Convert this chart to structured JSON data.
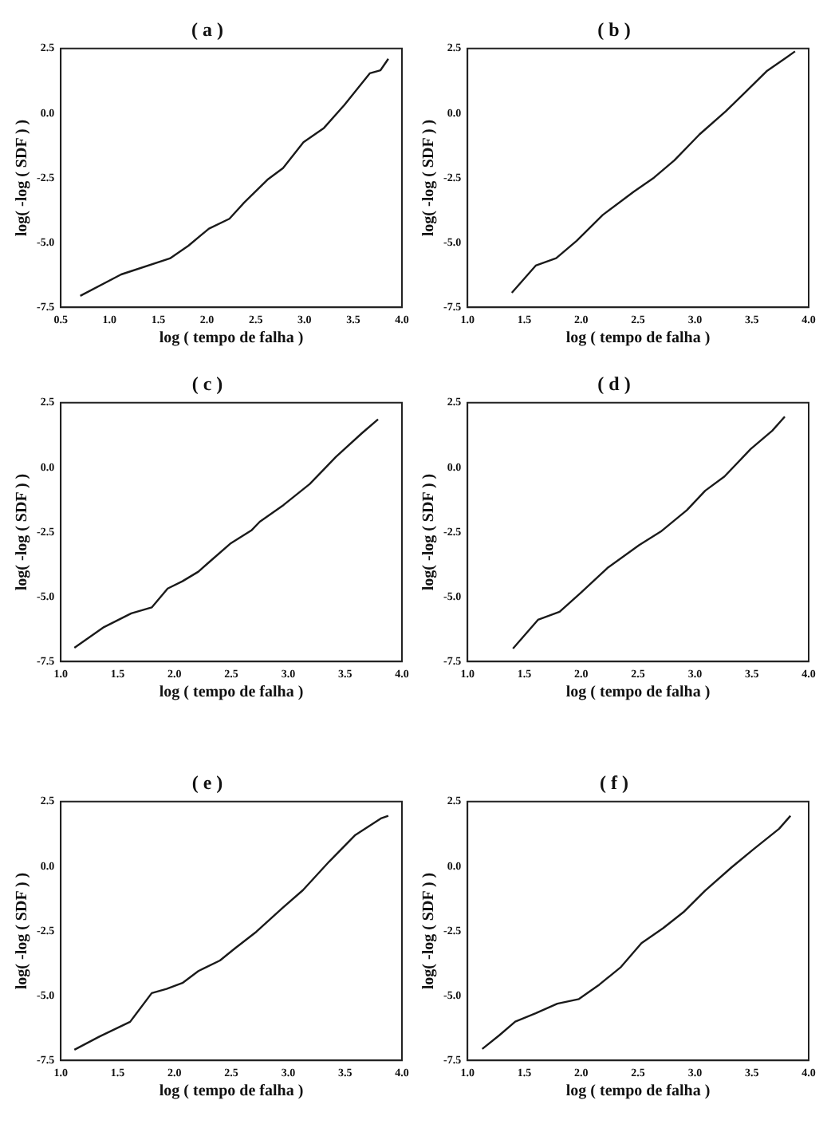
{
  "chart_data": [
    {
      "type": "line",
      "title": "( a )",
      "xlabel": "log ( tempo de falha )",
      "ylabel": "log( -log ( SDF ) )",
      "xlim": [
        0.5,
        4.0
      ],
      "ylim": [
        -7.5,
        2.5
      ],
      "xticks": [
        {
          "value": 0.5,
          "label": "0.5"
        },
        {
          "value": 1,
          "label": "1.0"
        },
        {
          "value": 1.5,
          "label": "1.5"
        },
        {
          "value": 2,
          "label": "2.0"
        },
        {
          "value": 2.5,
          "label": "2.5"
        },
        {
          "value": 3,
          "label": "3.0"
        },
        {
          "value": 3.5,
          "label": "3.5"
        },
        {
          "value": 4,
          "label": "4.0"
        }
      ],
      "yticks": [
        {
          "value": -7.5,
          "label": "-7.5"
        },
        {
          "value": -5,
          "label": "-5.0"
        },
        {
          "value": -2.5,
          "label": "-2.5"
        },
        {
          "value": 0,
          "label": "0.0"
        },
        {
          "value": 2.5,
          "label": "2.5"
        }
      ],
      "grid": false,
      "legend": false,
      "marker": "none",
      "line_style": "solid",
      "series": [
        {
          "color": "#1a1a1a",
          "x": [
            0.7,
            1.12,
            1.62,
            1.81,
            2.02,
            2.23,
            2.38,
            2.62,
            2.78,
            2.99,
            3.2,
            3.41,
            3.67,
            3.78,
            3.86
          ],
          "values": [
            -7.06,
            -6.23,
            -5.61,
            -5.12,
            -4.46,
            -4.08,
            -3.46,
            -2.57,
            -2.12,
            -1.12,
            -0.57,
            0.32,
            1.54,
            1.66,
            2.1
          ]
        }
      ]
    },
    {
      "type": "line",
      "title": "( b )",
      "xlabel": "log ( tempo de falha )",
      "ylabel": "log( -log ( SDF ) )",
      "xlim": [
        1.0,
        4.0
      ],
      "ylim": [
        -7.5,
        2.5
      ],
      "xticks": [
        {
          "value": 1,
          "label": "1.0"
        },
        {
          "value": 1.5,
          "label": "1.5"
        },
        {
          "value": 2,
          "label": "2.0"
        },
        {
          "value": 2.5,
          "label": "2.5"
        },
        {
          "value": 3,
          "label": "3.0"
        },
        {
          "value": 3.5,
          "label": "3.5"
        },
        {
          "value": 4,
          "label": "4.0"
        }
      ],
      "yticks": [
        {
          "value": -7.5,
          "label": "-7.5"
        },
        {
          "value": -5,
          "label": "-5.0"
        },
        {
          "value": -2.5,
          "label": "-2.5"
        },
        {
          "value": 0,
          "label": "0.0"
        },
        {
          "value": 2.5,
          "label": "2.5"
        }
      ],
      "grid": false,
      "legend": false,
      "marker": "none",
      "line_style": "solid",
      "series": [
        {
          "color": "#1a1a1a",
          "x": [
            1.39,
            1.6,
            1.78,
            1.96,
            2.19,
            2.46,
            2.64,
            2.82,
            3.04,
            3.27,
            3.45,
            3.63,
            3.81,
            3.88
          ],
          "values": [
            -6.94,
            -5.89,
            -5.6,
            -4.93,
            -3.93,
            -3.04,
            -2.49,
            -1.82,
            -0.82,
            0.07,
            0.84,
            1.62,
            2.17,
            2.39
          ]
        }
      ]
    },
    {
      "type": "line",
      "title": "( c )",
      "xlabel": "log ( tempo de falha )",
      "ylabel": "log( -log ( SDF ) )",
      "xlim": [
        1.0,
        4.0
      ],
      "ylim": [
        -7.5,
        2.5
      ],
      "xticks": [
        {
          "value": 1,
          "label": "1.0"
        },
        {
          "value": 1.5,
          "label": "1.5"
        },
        {
          "value": 2,
          "label": "2.0"
        },
        {
          "value": 2.5,
          "label": "2.5"
        },
        {
          "value": 3,
          "label": "3.0"
        },
        {
          "value": 3.5,
          "label": "3.5"
        },
        {
          "value": 4,
          "label": "4.0"
        }
      ],
      "yticks": [
        {
          "value": -7.5,
          "label": "-7.5"
        },
        {
          "value": -5,
          "label": "-5.0"
        },
        {
          "value": -2.5,
          "label": "-2.5"
        },
        {
          "value": 0,
          "label": "0.0"
        },
        {
          "value": 2.5,
          "label": "2.5"
        }
      ],
      "grid": false,
      "legend": false,
      "marker": "none",
      "line_style": "solid",
      "series": [
        {
          "color": "#1a1a1a",
          "x": [
            1.12,
            1.38,
            1.62,
            1.8,
            1.94,
            2.07,
            2.21,
            2.31,
            2.49,
            2.68,
            2.75,
            2.96,
            3.19,
            3.42,
            3.65,
            3.79
          ],
          "values": [
            -6.97,
            -6.17,
            -5.64,
            -5.41,
            -4.68,
            -4.4,
            -4.03,
            -3.64,
            -2.95,
            -2.42,
            -2.1,
            -1.45,
            -0.64,
            0.41,
            1.33,
            1.86
          ]
        }
      ]
    },
    {
      "type": "line",
      "title": "( d )",
      "xlabel": "log ( tempo de falha )",
      "ylabel": "log( -log ( SDF ) )",
      "xlim": [
        1.0,
        4.0
      ],
      "ylim": [
        -7.5,
        2.5
      ],
      "xticks": [
        {
          "value": 1,
          "label": "1.0"
        },
        {
          "value": 1.5,
          "label": "1.5"
        },
        {
          "value": 2,
          "label": "2.0"
        },
        {
          "value": 2.5,
          "label": "2.5"
        },
        {
          "value": 3,
          "label": "3.0"
        },
        {
          "value": 3.5,
          "label": "3.5"
        },
        {
          "value": 4,
          "label": "4.0"
        }
      ],
      "yticks": [
        {
          "value": -7.5,
          "label": "-7.5"
        },
        {
          "value": -5,
          "label": "-5.0"
        },
        {
          "value": -2.5,
          "label": "-2.5"
        },
        {
          "value": 0,
          "label": "0.0"
        },
        {
          "value": 2.5,
          "label": "2.5"
        }
      ],
      "grid": false,
      "legend": false,
      "marker": "none",
      "line_style": "solid",
      "series": [
        {
          "color": "#1a1a1a",
          "x": [
            1.4,
            1.62,
            1.81,
            2.0,
            2.23,
            2.51,
            2.7,
            2.93,
            3.09,
            3.26,
            3.49,
            3.68,
            3.79
          ],
          "values": [
            -7.0,
            -5.89,
            -5.58,
            -4.83,
            -3.89,
            -3.0,
            -2.48,
            -1.65,
            -0.9,
            -0.35,
            0.71,
            1.42,
            1.96
          ]
        }
      ]
    },
    {
      "type": "line",
      "title": "( e )",
      "xlabel": "log ( tempo de falha )",
      "ylabel": "log( -log ( SDF ) )",
      "xlim": [
        1.0,
        4.0
      ],
      "ylim": [
        -7.5,
        2.5
      ],
      "xticks": [
        {
          "value": 1,
          "label": "1.0"
        },
        {
          "value": 1.5,
          "label": "1.5"
        },
        {
          "value": 2,
          "label": "2.0"
        },
        {
          "value": 2.5,
          "label": "2.5"
        },
        {
          "value": 3,
          "label": "3.0"
        },
        {
          "value": 3.5,
          "label": "3.5"
        },
        {
          "value": 4,
          "label": "4.0"
        }
      ],
      "yticks": [
        {
          "value": -7.5,
          "label": "-7.5"
        },
        {
          "value": -5,
          "label": "-5.0"
        },
        {
          "value": -2.5,
          "label": "-2.5"
        },
        {
          "value": 0,
          "label": "0.0"
        },
        {
          "value": 2.5,
          "label": "2.5"
        }
      ],
      "grid": false,
      "legend": false,
      "marker": "none",
      "line_style": "solid",
      "series": [
        {
          "color": "#1a1a1a",
          "x": [
            1.12,
            1.34,
            1.61,
            1.8,
            1.93,
            2.07,
            2.21,
            2.4,
            2.53,
            2.72,
            2.95,
            3.13,
            3.36,
            3.59,
            3.82,
            3.88
          ],
          "values": [
            -7.09,
            -6.58,
            -6.01,
            -4.9,
            -4.74,
            -4.51,
            -4.05,
            -3.64,
            -3.18,
            -2.53,
            -1.61,
            -0.92,
            0.18,
            1.21,
            1.86,
            1.95
          ]
        }
      ]
    },
    {
      "type": "line",
      "title": "( f )",
      "xlabel": "log ( tempo de falha )",
      "ylabel": "log( -log ( SDF ) )",
      "xlim": [
        1.0,
        4.0
      ],
      "ylim": [
        -7.5,
        2.5
      ],
      "xticks": [
        {
          "value": 1,
          "label": "1.0"
        },
        {
          "value": 1.5,
          "label": "1.5"
        },
        {
          "value": 2,
          "label": "2.0"
        },
        {
          "value": 2.5,
          "label": "2.5"
        },
        {
          "value": 3,
          "label": "3.0"
        },
        {
          "value": 3.5,
          "label": "3.5"
        },
        {
          "value": 4,
          "label": "4.0"
        }
      ],
      "yticks": [
        {
          "value": -7.5,
          "label": "-7.5"
        },
        {
          "value": -5,
          "label": "-5.0"
        },
        {
          "value": -2.5,
          "label": "-2.5"
        },
        {
          "value": 0,
          "label": "0.0"
        },
        {
          "value": 2.5,
          "label": "2.5"
        }
      ],
      "grid": false,
      "legend": false,
      "marker": "none",
      "line_style": "solid",
      "series": [
        {
          "color": "#1a1a1a",
          "x": [
            1.13,
            1.28,
            1.42,
            1.6,
            1.79,
            1.98,
            2.16,
            2.35,
            2.53,
            2.72,
            2.9,
            3.09,
            3.32,
            3.51,
            3.74,
            3.84
          ],
          "values": [
            -7.06,
            -6.53,
            -6.0,
            -5.68,
            -5.31,
            -5.13,
            -4.57,
            -3.89,
            -2.97,
            -2.39,
            -1.77,
            -0.94,
            -0.05,
            0.64,
            1.45,
            1.95
          ]
        }
      ]
    }
  ]
}
